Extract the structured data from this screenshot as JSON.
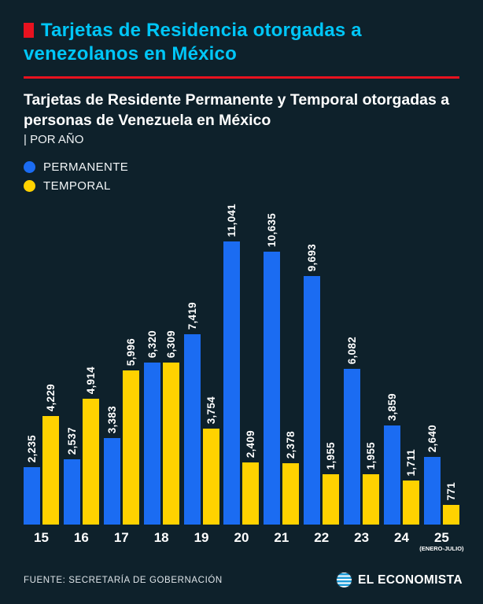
{
  "header": {
    "title": "Tarjetas de Residencia otorgadas a venezolanos en México",
    "marker_color": "#e8121f",
    "divider_color": "#e8121f"
  },
  "subtitle": {
    "bold": "Tarjetas de Residente Permanente y Temporal otorgadas a personas de Venezuela en México",
    "tag": "| POR AÑO"
  },
  "legend": {
    "items": [
      {
        "label": "PERMANENTE",
        "color": "#1b6cf2"
      },
      {
        "label": "TEMPORAL",
        "color": "#ffd200"
      }
    ]
  },
  "chart_data": {
    "type": "bar",
    "title": "Tarjetas de Residente Permanente y Temporal otorgadas a personas de Venezuela en México, por año",
    "categories": [
      "15",
      "16",
      "17",
      "18",
      "19",
      "20",
      "21",
      "22",
      "23",
      "24",
      "25"
    ],
    "category_note": {
      "index": 10,
      "text": "(ENERO-JULIO)"
    },
    "series": [
      {
        "name": "PERMANENTE",
        "color": "#1b6cf2",
        "values": [
          2235,
          2537,
          3383,
          6320,
          7419,
          11041,
          10635,
          9693,
          6082,
          3859,
          2640
        ],
        "labels": [
          "2,235",
          "2,537",
          "3,383",
          "6,320",
          "7,419",
          "11,041",
          "10,635",
          "9,693",
          "6,082",
          "3,859",
          "2,640"
        ]
      },
      {
        "name": "TEMPORAL",
        "color": "#ffd200",
        "values": [
          4229,
          4914,
          5996,
          6309,
          3754,
          2409,
          2378,
          1955,
          1955,
          1711,
          771
        ],
        "labels": [
          "4,229",
          "4,914",
          "5,996",
          "6,309",
          "3,754",
          "2,409",
          "2,378",
          "1,955",
          "1,955",
          "1,711",
          "771"
        ]
      }
    ],
    "xlabel": "",
    "ylabel": "",
    "ylim": [
      0,
      11041
    ],
    "grid": false,
    "legend_position": "top-left",
    "value_labels_rotated": true
  },
  "footer": {
    "source": "FUENTE: SECRETARÍA DE GOBERNACIÓN",
    "brand": "EL ECONOMISTA"
  },
  "colors": {
    "background": "#0e212b",
    "title": "#00c6f7",
    "accent_red": "#e8121f",
    "permanente": "#1b6cf2",
    "temporal": "#ffd200",
    "text": "#ffffff"
  }
}
